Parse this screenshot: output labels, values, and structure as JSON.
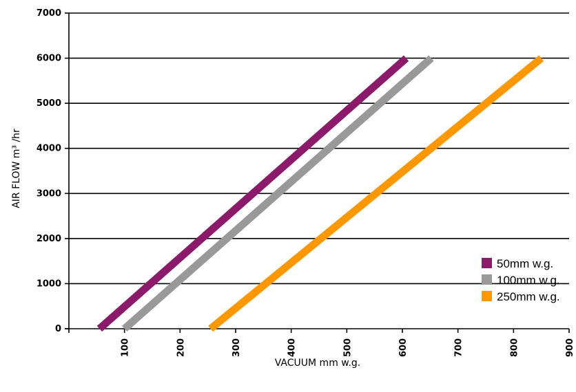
{
  "chart_data": {
    "type": "line",
    "xlabel": "VACUUM mm w.g.",
    "ylabel": "AIR FLOW m³ /hr",
    "xlim": [
      0,
      900
    ],
    "ylim": [
      0,
      7000
    ],
    "x_ticks": [
      "100",
      "200",
      "300",
      "400",
      "500",
      "600",
      "700",
      "800",
      "900"
    ],
    "y_ticks": [
      "0",
      "1000",
      "2000",
      "3000",
      "4000",
      "5000",
      "6000",
      "7000"
    ],
    "grid": "horizontal",
    "legend_position": "bottom-right",
    "series": [
      {
        "name": "50mm w.g.",
        "color": "#8b1a6b",
        "points": [
          [
            55,
            0
          ],
          [
            607,
            6000
          ]
        ]
      },
      {
        "name": "100mm w.g.",
        "color": "#999999",
        "points": [
          [
            100,
            0
          ],
          [
            652,
            6000
          ]
        ]
      },
      {
        "name": "250mm w.g.",
        "color": "#ff9800",
        "points": [
          [
            255,
            0
          ],
          [
            850,
            6000
          ]
        ]
      }
    ]
  }
}
